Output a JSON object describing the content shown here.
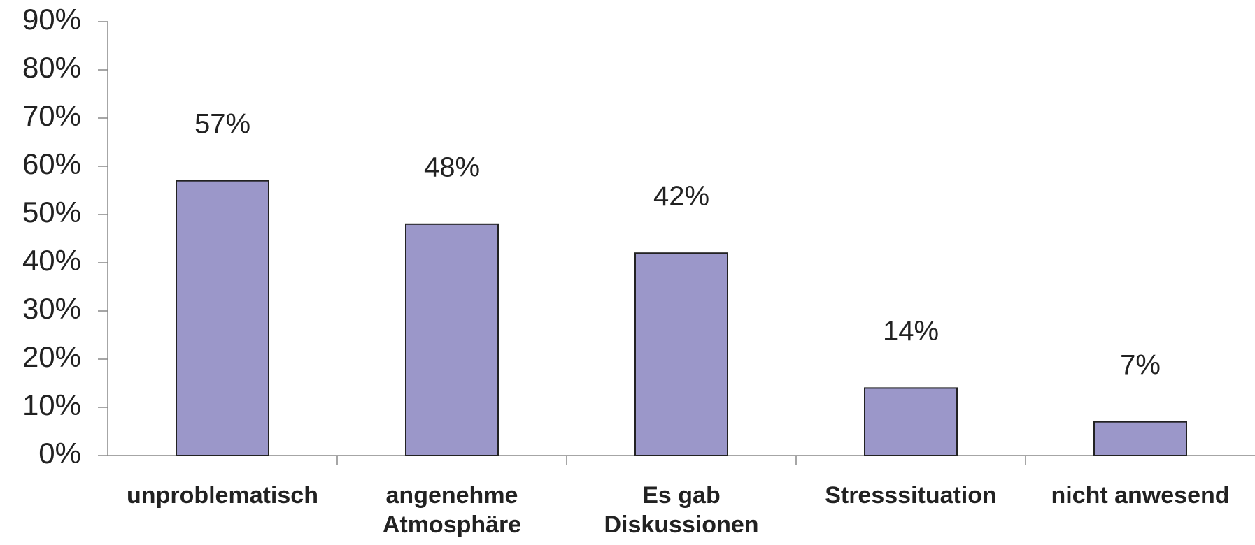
{
  "chart_data": {
    "type": "bar",
    "categories": [
      [
        "unproblematisch"
      ],
      [
        "angenehme",
        "Atmosphäre"
      ],
      [
        "Es gab",
        "Diskussionen"
      ],
      [
        "Stresssituation"
      ],
      [
        "nicht anwesend"
      ]
    ],
    "values": [
      57,
      48,
      42,
      14,
      7
    ],
    "value_labels": [
      "57%",
      "48%",
      "42%",
      "14%",
      "7%"
    ],
    "color": "#9b97c9",
    "ylim": [
      0,
      90
    ],
    "yticks": [
      {
        "value": 0,
        "label": "0%"
      },
      {
        "value": 10,
        "label": "10%"
      },
      {
        "value": 20,
        "label": "20%"
      },
      {
        "value": 30,
        "label": "30%"
      },
      {
        "value": 40,
        "label": "40%"
      },
      {
        "value": 50,
        "label": "50%"
      },
      {
        "value": 60,
        "label": "60%"
      },
      {
        "value": 70,
        "label": "70%"
      },
      {
        "value": 80,
        "label": "80%"
      },
      {
        "value": 90,
        "label": "90%"
      }
    ],
    "grid": false
  }
}
